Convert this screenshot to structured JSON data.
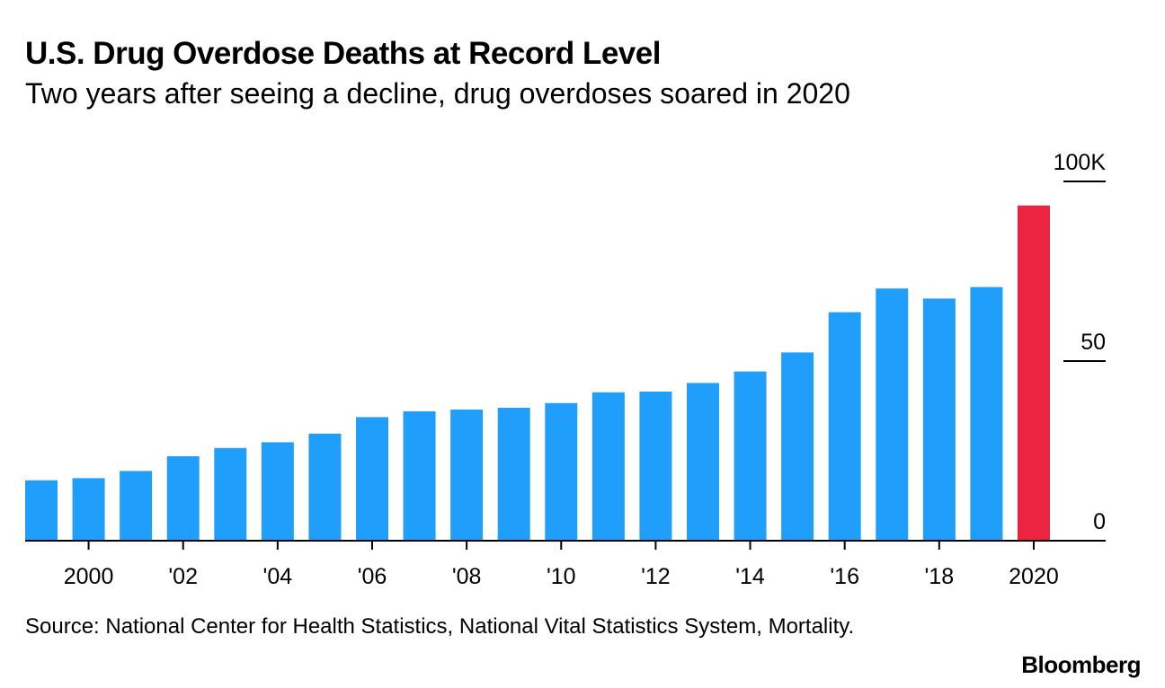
{
  "chart_data": {
    "type": "bar",
    "title": "U.S. Drug Overdose Deaths at Record Level",
    "subtitle": "Two years after seeing a decline, drug overdoses soared in 2020",
    "categories": [
      "1999",
      "2000",
      "2001",
      "2002",
      "2003",
      "2004",
      "2005",
      "2006",
      "2007",
      "2008",
      "2009",
      "2010",
      "2011",
      "2012",
      "2013",
      "2014",
      "2015",
      "2016",
      "2017",
      "2018",
      "2019",
      "2020"
    ],
    "values": [
      16.8,
      17.4,
      19.4,
      23.5,
      25.8,
      27.4,
      29.8,
      34.4,
      36.0,
      36.5,
      37.0,
      38.3,
      41.3,
      41.5,
      43.9,
      47.1,
      52.4,
      63.6,
      70.2,
      67.4,
      70.6,
      93.3
    ],
    "highlight_index": 21,
    "colors": {
      "bar": "#1f9ffb",
      "highlight": "#eb2441",
      "axis": "#000000"
    },
    "ylim": [
      0,
      100
    ],
    "y_ticks": [
      {
        "value": 0,
        "label": "0"
      },
      {
        "value": 50,
        "label": "50"
      },
      {
        "value": 100,
        "label": "100K"
      }
    ],
    "x_tick_labels": [
      "2000",
      "'02",
      "'04",
      "'06",
      "'08",
      "'10",
      "'12",
      "'14",
      "'16",
      "'18",
      "2020"
    ],
    "xlabel": "",
    "ylabel": ""
  },
  "footer": {
    "source": "Source: National Center for Health Statistics, National Vital Statistics System, Mortality.",
    "brand": "Bloomberg"
  }
}
